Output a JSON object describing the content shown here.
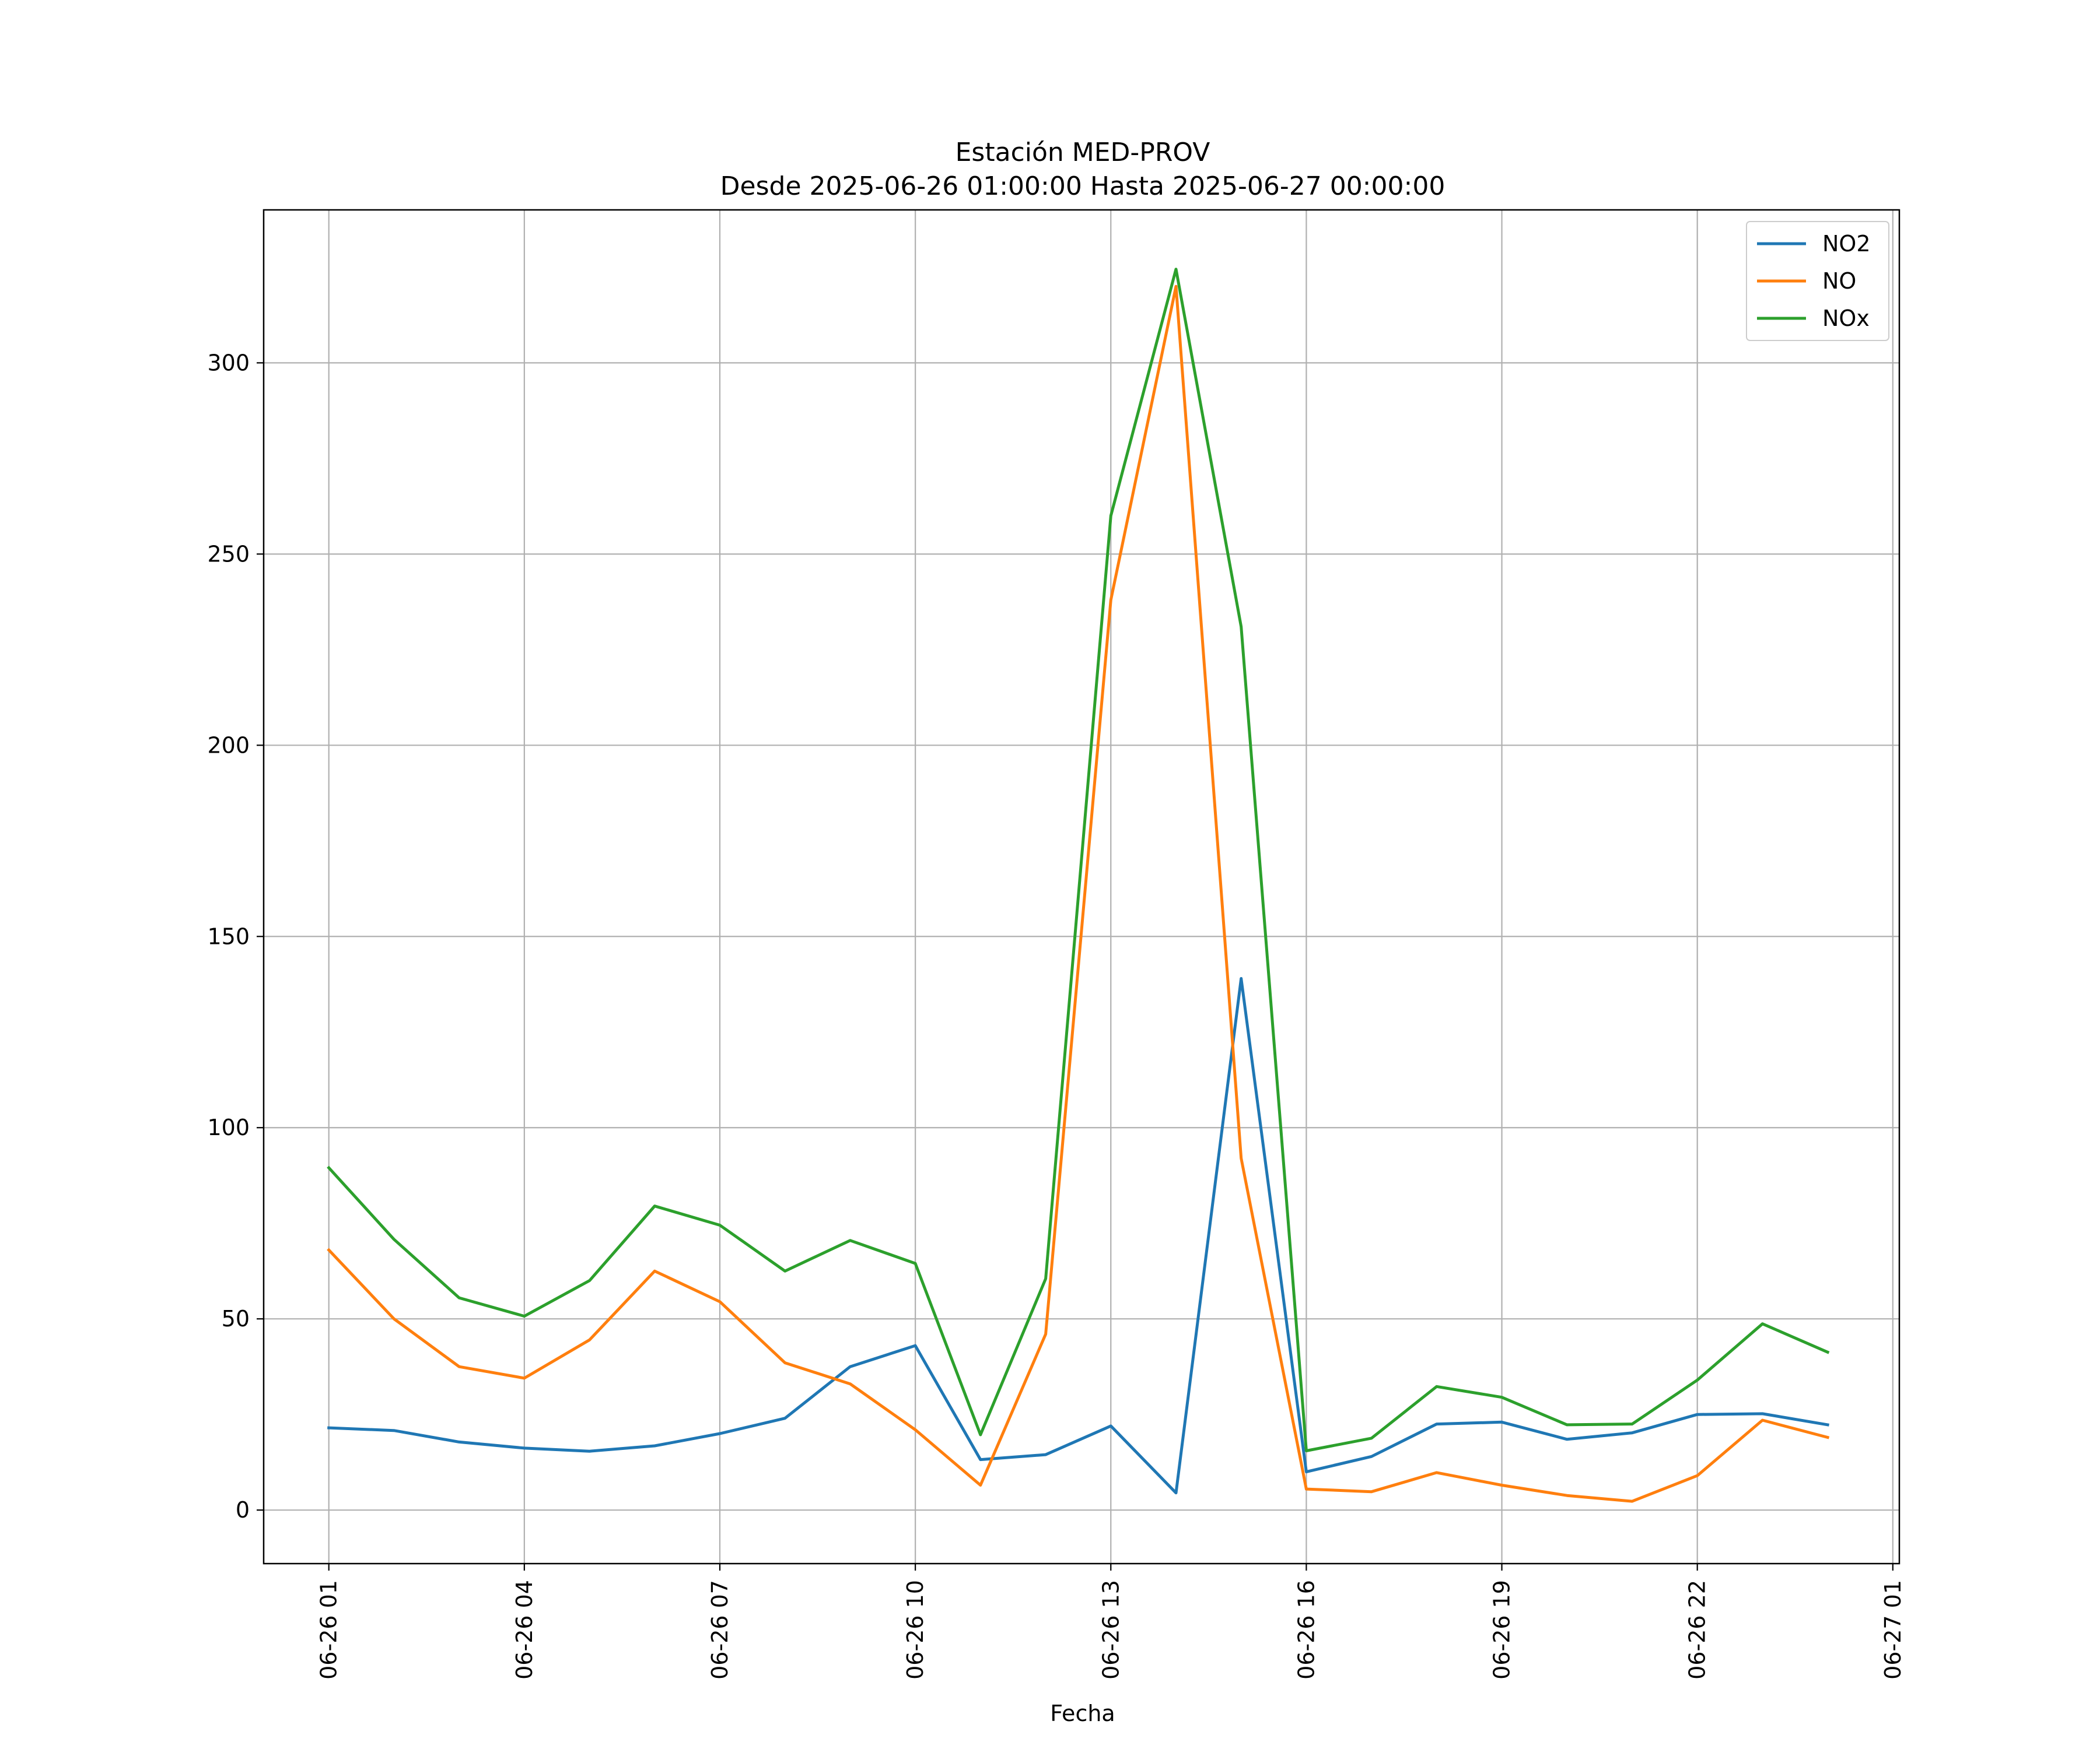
{
  "chart_data": {
    "type": "line",
    "title": "Estación MED-PROV",
    "subtitle": "Desde 2025-06-26 01:00:00 Hasta 2025-06-27 00:00:00",
    "xlabel": "Fecha",
    "ylabel": "",
    "x": [
      "2025-06-26 01:00",
      "2025-06-26 02:00",
      "2025-06-26 03:00",
      "2025-06-26 04:00",
      "2025-06-26 05:00",
      "2025-06-26 06:00",
      "2025-06-26 07:00",
      "2025-06-26 08:00",
      "2025-06-26 09:00",
      "2025-06-26 10:00",
      "2025-06-26 11:00",
      "2025-06-26 12:00",
      "2025-06-26 13:00",
      "2025-06-26 14:00",
      "2025-06-26 15:00",
      "2025-06-26 16:00",
      "2025-06-26 17:00",
      "2025-06-26 18:00",
      "2025-06-26 19:00",
      "2025-06-26 20:00",
      "2025-06-26 21:00",
      "2025-06-26 22:00",
      "2025-06-26 23:00",
      "2025-06-27 00:00"
    ],
    "xlim": [
      "2025-06-26 00:00",
      "2025-06-27 01:06"
    ],
    "ylim": [
      -14,
      340
    ],
    "x_ticks": [
      "06-26 01",
      "06-26 04",
      "06-26 07",
      "06-26 10",
      "06-26 13",
      "06-26 16",
      "06-26 19",
      "06-26 22",
      "06-27 01"
    ],
    "x_tick_hours": [
      1,
      4,
      7,
      10,
      13,
      16,
      19,
      22,
      25
    ],
    "y_ticks": [
      0,
      50,
      100,
      150,
      200,
      250,
      300
    ],
    "grid": true,
    "legend_position": "top-right",
    "series": [
      {
        "name": "NO2",
        "color": "#1f77b4",
        "values": [
          21.5,
          20.8,
          17.8,
          16.2,
          15.4,
          16.8,
          20.0,
          24.0,
          37.5,
          43.0,
          13.2,
          14.5,
          22.0,
          4.5,
          139.0,
          10.0,
          14.0,
          22.5,
          23.0,
          18.5,
          20.2,
          25.0,
          25.2,
          22.3
        ]
      },
      {
        "name": "NO",
        "color": "#ff7f0e",
        "values": [
          68.0,
          50.0,
          37.5,
          34.5,
          44.5,
          62.5,
          54.5,
          38.5,
          33.0,
          21.0,
          6.5,
          46.0,
          238.0,
          320.0,
          92.0,
          5.5,
          4.8,
          9.8,
          6.5,
          3.8,
          2.3,
          9.0,
          23.5,
          19.0
        ]
      },
      {
        "name": "NOx",
        "color": "#2ca02c",
        "values": [
          89.5,
          70.8,
          55.5,
          50.7,
          60.0,
          79.5,
          74.5,
          62.5,
          70.5,
          64.5,
          19.7,
          60.5,
          260.0,
          324.5,
          231.0,
          15.5,
          18.8,
          32.3,
          29.5,
          22.3,
          22.5,
          34.0,
          48.7,
          41.3
        ]
      }
    ]
  }
}
